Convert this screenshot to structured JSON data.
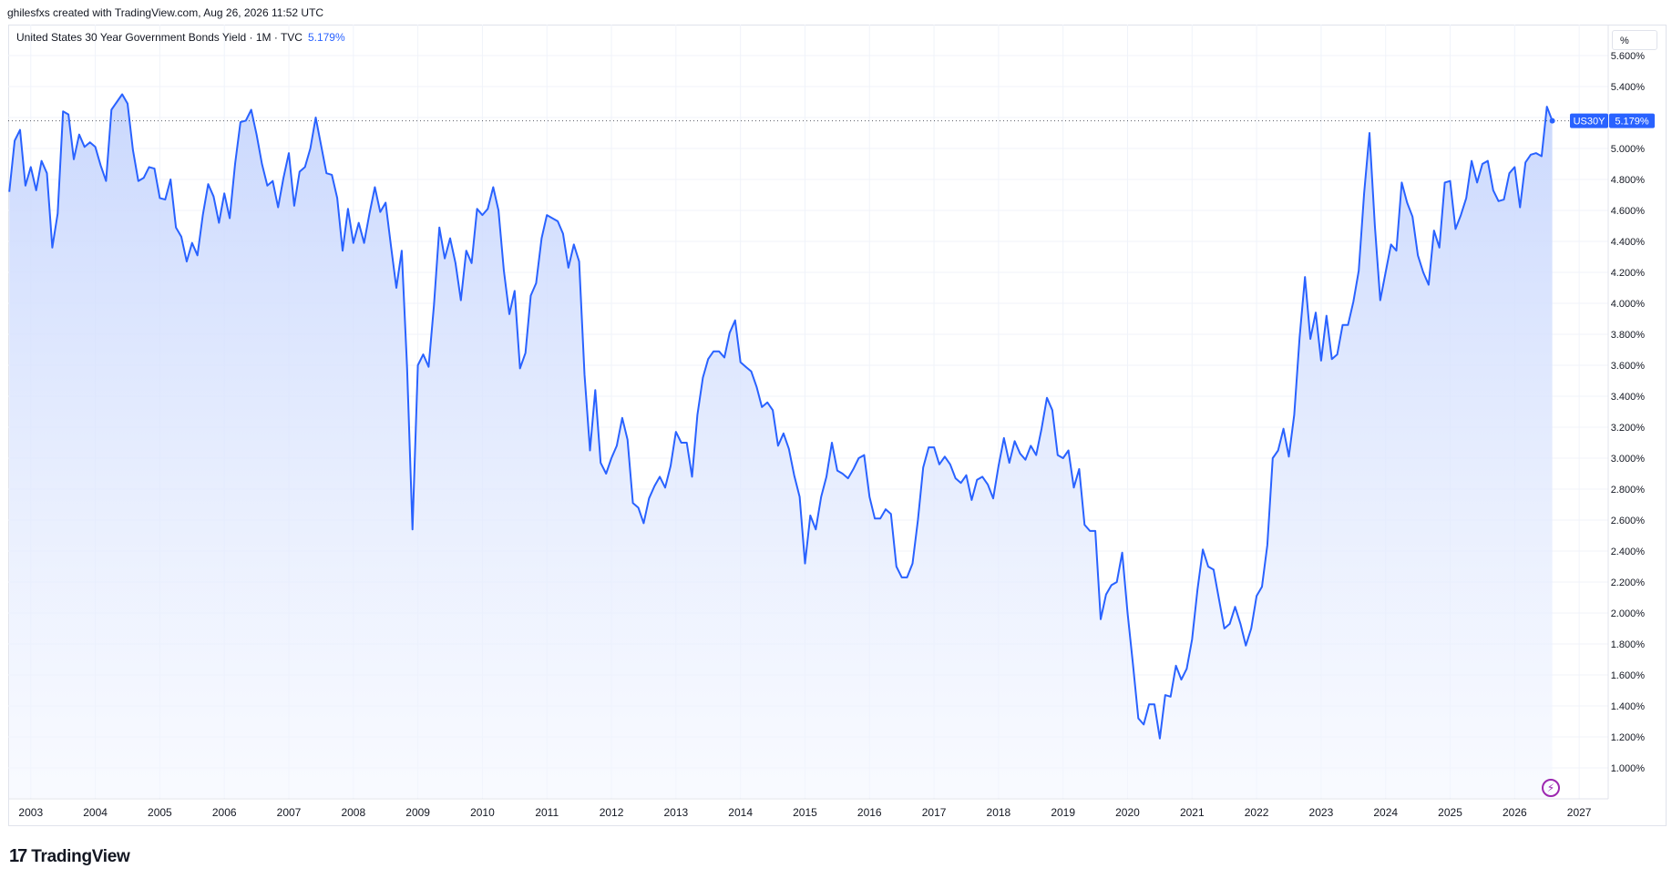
{
  "header": {
    "credit": "ghilesfxs created with TradingView.com, Aug 26, 2026 11:52 UTC"
  },
  "legend": {
    "title": "United States 30 Year Government Bonds Yield · 1M · TVC",
    "value": "5.179%"
  },
  "price_scale": {
    "unit": "%",
    "badge_label": "US30Y",
    "badge_value": "5.179%"
  },
  "brand": {
    "logo_text": "TradingView",
    "logo_mark": "17"
  },
  "colors": {
    "line": "#2962ff",
    "fill_top": "#c7d6fd",
    "fill_bottom": "#f4f7ff",
    "grid": "#f0f3fa",
    "flash": "#9c27b0"
  },
  "chart_data": {
    "type": "area",
    "ylim": [
      0.8,
      5.8
    ],
    "xlim": [
      2002.65,
      2027.45
    ],
    "y_ticks": [
      "1.000%",
      "1.200%",
      "1.400%",
      "1.600%",
      "1.800%",
      "2.000%",
      "2.200%",
      "2.400%",
      "2.600%",
      "2.800%",
      "3.000%",
      "3.200%",
      "3.400%",
      "3.600%",
      "3.800%",
      "4.000%",
      "4.200%",
      "4.400%",
      "4.600%",
      "4.800%",
      "5.000%",
      "5.200%",
      "5.400%",
      "5.600%"
    ],
    "x_ticks": [
      "2003",
      "2004",
      "2005",
      "2006",
      "2007",
      "2008",
      "2009",
      "2010",
      "2011",
      "2012",
      "2013",
      "2014",
      "2015",
      "2016",
      "2017",
      "2018",
      "2019",
      "2020",
      "2021",
      "2022",
      "2023",
      "2024",
      "2025",
      "2026",
      "2027"
    ],
    "last_value": 5.179,
    "series": [
      {
        "points": [
          [
            2002.667,
            4.72
          ],
          [
            2002.75,
            5.05
          ],
          [
            2002.833,
            5.12
          ],
          [
            2002.917,
            4.76
          ],
          [
            2003.0,
            4.88
          ],
          [
            2003.083,
            4.73
          ],
          [
            2003.167,
            4.92
          ],
          [
            2003.25,
            4.84
          ],
          [
            2003.333,
            4.36
          ],
          [
            2003.417,
            4.58
          ],
          [
            2003.5,
            5.24
          ],
          [
            2003.583,
            5.22
          ],
          [
            2003.667,
            4.93
          ],
          [
            2003.75,
            5.09
          ],
          [
            2003.833,
            5.01
          ],
          [
            2003.917,
            5.04
          ],
          [
            2004.0,
            5.01
          ],
          [
            2004.083,
            4.89
          ],
          [
            2004.167,
            4.79
          ],
          [
            2004.25,
            5.25
          ],
          [
            2004.333,
            5.3
          ],
          [
            2004.417,
            5.35
          ],
          [
            2004.5,
            5.29
          ],
          [
            2004.583,
            4.99
          ],
          [
            2004.667,
            4.79
          ],
          [
            2004.75,
            4.81
          ],
          [
            2004.833,
            4.88
          ],
          [
            2004.917,
            4.87
          ],
          [
            2005.0,
            4.68
          ],
          [
            2005.083,
            4.67
          ],
          [
            2005.167,
            4.8
          ],
          [
            2005.25,
            4.49
          ],
          [
            2005.333,
            4.43
          ],
          [
            2005.417,
            4.27
          ],
          [
            2005.5,
            4.39
          ],
          [
            2005.583,
            4.31
          ],
          [
            2005.667,
            4.57
          ],
          [
            2005.75,
            4.77
          ],
          [
            2005.833,
            4.69
          ],
          [
            2005.917,
            4.52
          ],
          [
            2006.0,
            4.71
          ],
          [
            2006.083,
            4.55
          ],
          [
            2006.167,
            4.9
          ],
          [
            2006.25,
            5.17
          ],
          [
            2006.333,
            5.18
          ],
          [
            2006.417,
            5.25
          ],
          [
            2006.5,
            5.09
          ],
          [
            2006.583,
            4.9
          ],
          [
            2006.667,
            4.76
          ],
          [
            2006.75,
            4.79
          ],
          [
            2006.833,
            4.62
          ],
          [
            2006.917,
            4.81
          ],
          [
            2007.0,
            4.97
          ],
          [
            2007.083,
            4.63
          ],
          [
            2007.167,
            4.85
          ],
          [
            2007.25,
            4.88
          ],
          [
            2007.333,
            5.0
          ],
          [
            2007.417,
            5.2
          ],
          [
            2007.5,
            5.02
          ],
          [
            2007.583,
            4.84
          ],
          [
            2007.667,
            4.83
          ],
          [
            2007.75,
            4.68
          ],
          [
            2007.833,
            4.34
          ],
          [
            2007.917,
            4.61
          ],
          [
            2008.0,
            4.39
          ],
          [
            2008.083,
            4.52
          ],
          [
            2008.167,
            4.39
          ],
          [
            2008.25,
            4.58
          ],
          [
            2008.333,
            4.75
          ],
          [
            2008.417,
            4.59
          ],
          [
            2008.5,
            4.65
          ],
          [
            2008.583,
            4.37
          ],
          [
            2008.667,
            4.1
          ],
          [
            2008.75,
            4.34
          ],
          [
            2008.833,
            3.58
          ],
          [
            2008.917,
            2.54
          ],
          [
            2009.0,
            3.6
          ],
          [
            2009.083,
            3.67
          ],
          [
            2009.167,
            3.59
          ],
          [
            2009.25,
            3.99
          ],
          [
            2009.333,
            4.49
          ],
          [
            2009.417,
            4.29
          ],
          [
            2009.5,
            4.42
          ],
          [
            2009.583,
            4.26
          ],
          [
            2009.667,
            4.02
          ],
          [
            2009.75,
            4.34
          ],
          [
            2009.833,
            4.26
          ],
          [
            2009.917,
            4.61
          ],
          [
            2010.0,
            4.57
          ],
          [
            2010.083,
            4.61
          ],
          [
            2010.167,
            4.75
          ],
          [
            2010.25,
            4.6
          ],
          [
            2010.333,
            4.21
          ],
          [
            2010.417,
            3.93
          ],
          [
            2010.5,
            4.08
          ],
          [
            2010.583,
            3.58
          ],
          [
            2010.667,
            3.68
          ],
          [
            2010.75,
            4.05
          ],
          [
            2010.833,
            4.13
          ],
          [
            2010.917,
            4.42
          ],
          [
            2011.0,
            4.57
          ],
          [
            2011.083,
            4.55
          ],
          [
            2011.167,
            4.53
          ],
          [
            2011.25,
            4.45
          ],
          [
            2011.333,
            4.23
          ],
          [
            2011.417,
            4.38
          ],
          [
            2011.5,
            4.27
          ],
          [
            2011.583,
            3.54
          ],
          [
            2011.667,
            3.05
          ],
          [
            2011.75,
            3.44
          ],
          [
            2011.833,
            2.97
          ],
          [
            2011.917,
            2.9
          ],
          [
            2012.0,
            3.0
          ],
          [
            2012.083,
            3.08
          ],
          [
            2012.167,
            3.26
          ],
          [
            2012.25,
            3.12
          ],
          [
            2012.333,
            2.71
          ],
          [
            2012.417,
            2.68
          ],
          [
            2012.5,
            2.58
          ],
          [
            2012.583,
            2.74
          ],
          [
            2012.667,
            2.82
          ],
          [
            2012.75,
            2.88
          ],
          [
            2012.833,
            2.81
          ],
          [
            2012.917,
            2.95
          ],
          [
            2013.0,
            3.17
          ],
          [
            2013.083,
            3.1
          ],
          [
            2013.167,
            3.1
          ],
          [
            2013.25,
            2.88
          ],
          [
            2013.333,
            3.28
          ],
          [
            2013.417,
            3.52
          ],
          [
            2013.5,
            3.64
          ],
          [
            2013.583,
            3.69
          ],
          [
            2013.667,
            3.69
          ],
          [
            2013.75,
            3.65
          ],
          [
            2013.833,
            3.81
          ],
          [
            2013.917,
            3.89
          ],
          [
            2014.0,
            3.62
          ],
          [
            2014.083,
            3.59
          ],
          [
            2014.167,
            3.56
          ],
          [
            2014.25,
            3.46
          ],
          [
            2014.333,
            3.33
          ],
          [
            2014.417,
            3.36
          ],
          [
            2014.5,
            3.31
          ],
          [
            2014.583,
            3.08
          ],
          [
            2014.667,
            3.16
          ],
          [
            2014.75,
            3.06
          ],
          [
            2014.833,
            2.89
          ],
          [
            2014.917,
            2.75
          ],
          [
            2015.0,
            2.32
          ],
          [
            2015.083,
            2.63
          ],
          [
            2015.167,
            2.54
          ],
          [
            2015.25,
            2.75
          ],
          [
            2015.333,
            2.88
          ],
          [
            2015.417,
            3.1
          ],
          [
            2015.5,
            2.92
          ],
          [
            2015.583,
            2.9
          ],
          [
            2015.667,
            2.87
          ],
          [
            2015.75,
            2.93
          ],
          [
            2015.833,
            3.0
          ],
          [
            2015.917,
            3.02
          ],
          [
            2016.0,
            2.75
          ],
          [
            2016.083,
            2.61
          ],
          [
            2016.167,
            2.61
          ],
          [
            2016.25,
            2.67
          ],
          [
            2016.333,
            2.64
          ],
          [
            2016.417,
            2.3
          ],
          [
            2016.5,
            2.23
          ],
          [
            2016.583,
            2.23
          ],
          [
            2016.667,
            2.32
          ],
          [
            2016.75,
            2.6
          ],
          [
            2016.833,
            2.94
          ],
          [
            2016.917,
            3.07
          ],
          [
            2017.0,
            3.07
          ],
          [
            2017.083,
            2.96
          ],
          [
            2017.167,
            3.01
          ],
          [
            2017.25,
            2.96
          ],
          [
            2017.333,
            2.87
          ],
          [
            2017.417,
            2.84
          ],
          [
            2017.5,
            2.89
          ],
          [
            2017.583,
            2.73
          ],
          [
            2017.667,
            2.86
          ],
          [
            2017.75,
            2.88
          ],
          [
            2017.833,
            2.83
          ],
          [
            2017.917,
            2.74
          ],
          [
            2018.0,
            2.95
          ],
          [
            2018.083,
            3.13
          ],
          [
            2018.167,
            2.97
          ],
          [
            2018.25,
            3.11
          ],
          [
            2018.333,
            3.03
          ],
          [
            2018.417,
            2.99
          ],
          [
            2018.5,
            3.08
          ],
          [
            2018.583,
            3.02
          ],
          [
            2018.667,
            3.19
          ],
          [
            2018.75,
            3.39
          ],
          [
            2018.833,
            3.31
          ],
          [
            2018.917,
            3.02
          ],
          [
            2019.0,
            3.0
          ],
          [
            2019.083,
            3.05
          ],
          [
            2019.167,
            2.81
          ],
          [
            2019.25,
            2.93
          ],
          [
            2019.333,
            2.57
          ],
          [
            2019.417,
            2.53
          ],
          [
            2019.5,
            2.53
          ],
          [
            2019.583,
            1.96
          ],
          [
            2019.667,
            2.12
          ],
          [
            2019.75,
            2.18
          ],
          [
            2019.833,
            2.2
          ],
          [
            2019.917,
            2.39
          ],
          [
            2020.0,
            2.0
          ],
          [
            2020.083,
            1.67
          ],
          [
            2020.167,
            1.32
          ],
          [
            2020.25,
            1.28
          ],
          [
            2020.333,
            1.41
          ],
          [
            2020.417,
            1.41
          ],
          [
            2020.5,
            1.19
          ],
          [
            2020.583,
            1.47
          ],
          [
            2020.667,
            1.46
          ],
          [
            2020.75,
            1.66
          ],
          [
            2020.833,
            1.57
          ],
          [
            2020.917,
            1.64
          ],
          [
            2021.0,
            1.83
          ],
          [
            2021.083,
            2.15
          ],
          [
            2021.167,
            2.41
          ],
          [
            2021.25,
            2.3
          ],
          [
            2021.333,
            2.28
          ],
          [
            2021.417,
            2.09
          ],
          [
            2021.5,
            1.9
          ],
          [
            2021.583,
            1.93
          ],
          [
            2021.667,
            2.04
          ],
          [
            2021.75,
            1.93
          ],
          [
            2021.833,
            1.79
          ],
          [
            2021.917,
            1.9
          ],
          [
            2022.0,
            2.11
          ],
          [
            2022.083,
            2.17
          ],
          [
            2022.167,
            2.44
          ],
          [
            2022.25,
            3.0
          ],
          [
            2022.333,
            3.05
          ],
          [
            2022.417,
            3.19
          ],
          [
            2022.5,
            3.01
          ],
          [
            2022.583,
            3.28
          ],
          [
            2022.667,
            3.78
          ],
          [
            2022.75,
            4.17
          ],
          [
            2022.833,
            3.77
          ],
          [
            2022.917,
            3.94
          ],
          [
            2023.0,
            3.63
          ],
          [
            2023.083,
            3.92
          ],
          [
            2023.167,
            3.64
          ],
          [
            2023.25,
            3.67
          ],
          [
            2023.333,
            3.86
          ],
          [
            2023.417,
            3.86
          ],
          [
            2023.5,
            4.01
          ],
          [
            2023.583,
            4.21
          ],
          [
            2023.667,
            4.71
          ],
          [
            2023.75,
            5.1
          ],
          [
            2023.833,
            4.5
          ],
          [
            2023.917,
            4.02
          ],
          [
            2024.0,
            4.2
          ],
          [
            2024.083,
            4.38
          ],
          [
            2024.167,
            4.34
          ],
          [
            2024.25,
            4.78
          ],
          [
            2024.333,
            4.65
          ],
          [
            2024.417,
            4.56
          ],
          [
            2024.5,
            4.31
          ],
          [
            2024.583,
            4.2
          ],
          [
            2024.667,
            4.12
          ],
          [
            2024.75,
            4.47
          ],
          [
            2024.833,
            4.36
          ],
          [
            2024.917,
            4.78
          ],
          [
            2025.0,
            4.79
          ],
          [
            2025.083,
            4.48
          ],
          [
            2025.167,
            4.57
          ],
          [
            2025.25,
            4.68
          ],
          [
            2025.333,
            4.92
          ],
          [
            2025.417,
            4.78
          ],
          [
            2025.5,
            4.9
          ],
          [
            2025.583,
            4.92
          ],
          [
            2025.667,
            4.73
          ],
          [
            2025.75,
            4.66
          ],
          [
            2025.833,
            4.67
          ],
          [
            2025.917,
            4.84
          ],
          [
            2026.0,
            4.88
          ],
          [
            2026.083,
            4.62
          ],
          [
            2026.167,
            4.91
          ],
          [
            2026.25,
            4.96
          ],
          [
            2026.333,
            4.97
          ],
          [
            2026.417,
            4.95
          ],
          [
            2026.5,
            5.27
          ],
          [
            2026.583,
            5.179
          ]
        ]
      }
    ]
  }
}
